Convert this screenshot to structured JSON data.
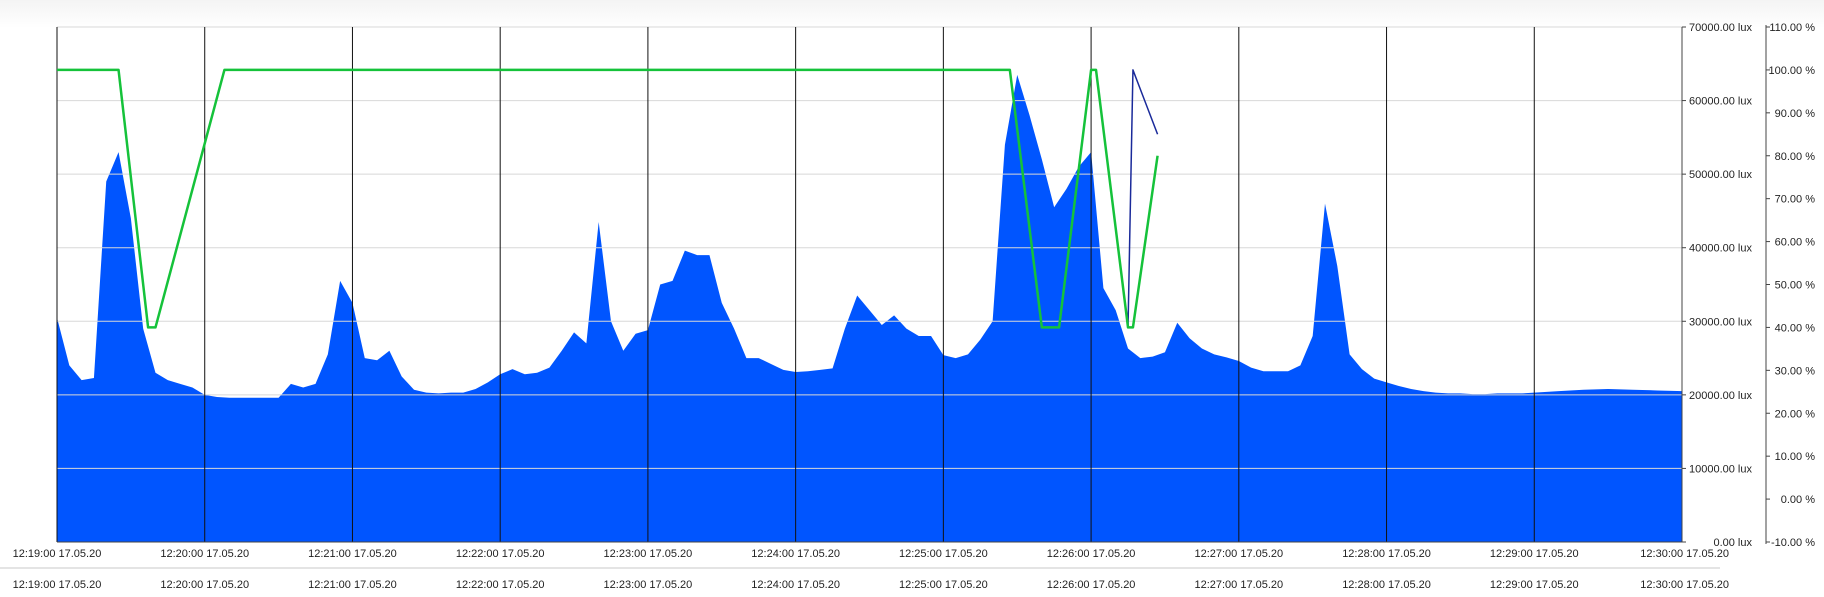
{
  "chart_data": {
    "type": "area",
    "x_ticks": [
      "12:19:00 17.05.20",
      "12:20:00 17.05.20",
      "12:21:00 17.05.20",
      "12:22:00 17.05.20",
      "12:23:00 17.05.20",
      "12:24:00 17.05.20",
      "12:25:00 17.05.20",
      "12:26:00 17.05.20",
      "12:27:00 17.05.20",
      "12:28:00 17.05.20",
      "12:29:00 17.05.20",
      "12:30:00 17.05.20"
    ],
    "xlim": [
      "12:19:00",
      "12:30:00"
    ],
    "y_left": {
      "ticks": [
        "0.00 lux",
        "10000.00 lux",
        "20000.00 lux",
        "30000.00 lux",
        "40000.00 lux",
        "50000.00 lux",
        "60000.00 lux",
        "70000.00 lux"
      ],
      "range": [
        0,
        70000
      ]
    },
    "y_right": {
      "ticks": [
        "-10.00 %",
        "0.00 %",
        "10.00 %",
        "20.00 %",
        "30.00 %",
        "40.00 %",
        "50.00 %",
        "60.00 %",
        "70.00 %",
        "80.00 %",
        "90.00 %",
        "100.00 %",
        "110.00 %"
      ],
      "range": [
        -10,
        110
      ]
    },
    "grid": {
      "horizontal": true,
      "vertical": true
    },
    "series": [
      {
        "kind": "area",
        "axis": "left",
        "color": "#0055ff",
        "points": [
          [
            "12:19:00",
            30500
          ],
          [
            "12:19:05",
            24000
          ],
          [
            "12:19:10",
            22000
          ],
          [
            "12:19:15",
            22300
          ],
          [
            "12:19:20",
            49000
          ],
          [
            "12:19:25",
            53000
          ],
          [
            "12:19:30",
            44000
          ],
          [
            "12:19:35",
            29000
          ],
          [
            "12:19:40",
            23000
          ],
          [
            "12:19:45",
            22000
          ],
          [
            "12:19:50",
            21500
          ],
          [
            "12:19:55",
            21000
          ],
          [
            "12:20:00",
            20000
          ],
          [
            "12:20:05",
            19700
          ],
          [
            "12:20:10",
            19600
          ],
          [
            "12:20:15",
            19600
          ],
          [
            "12:20:20",
            19600
          ],
          [
            "12:20:25",
            19600
          ],
          [
            "12:20:30",
            19600
          ],
          [
            "12:20:35",
            21500
          ],
          [
            "12:20:40",
            21000
          ],
          [
            "12:20:45",
            21500
          ],
          [
            "12:20:50",
            25500
          ],
          [
            "12:20:55",
            35500
          ],
          [
            "12:21:00",
            32500
          ],
          [
            "12:21:05",
            25000
          ],
          [
            "12:21:10",
            24700
          ],
          [
            "12:21:15",
            26000
          ],
          [
            "12:21:20",
            22500
          ],
          [
            "12:21:25",
            20700
          ],
          [
            "12:21:30",
            20300
          ],
          [
            "12:21:35",
            20200
          ],
          [
            "12:21:40",
            20300
          ],
          [
            "12:21:45",
            20300
          ],
          [
            "12:21:50",
            20800
          ],
          [
            "12:21:55",
            21700
          ],
          [
            "12:22:00",
            22800
          ],
          [
            "12:22:05",
            23500
          ],
          [
            "12:22:10",
            22800
          ],
          [
            "12:22:15",
            23000
          ],
          [
            "12:22:20",
            23700
          ],
          [
            "12:22:25",
            26000
          ],
          [
            "12:22:30",
            28500
          ],
          [
            "12:22:35",
            27000
          ],
          [
            "12:22:40",
            43500
          ],
          [
            "12:22:45",
            30000
          ],
          [
            "12:22:50",
            26000
          ],
          [
            "12:22:55",
            28300
          ],
          [
            "12:23:00",
            28800
          ],
          [
            "12:23:05",
            35000
          ],
          [
            "12:23:10",
            35500
          ],
          [
            "12:23:15",
            39600
          ],
          [
            "12:23:20",
            39000
          ],
          [
            "12:23:25",
            39000
          ],
          [
            "12:23:30",
            32500
          ],
          [
            "12:23:35",
            29000
          ],
          [
            "12:23:40",
            25000
          ],
          [
            "12:23:45",
            25000
          ],
          [
            "12:23:50",
            24200
          ],
          [
            "12:23:55",
            23400
          ],
          [
            "12:24:00",
            23100
          ],
          [
            "12:24:05",
            23200
          ],
          [
            "12:24:10",
            23400
          ],
          [
            "12:24:15",
            23600
          ],
          [
            "12:24:20",
            29000
          ],
          [
            "12:24:25",
            33500
          ],
          [
            "12:24:30",
            31500
          ],
          [
            "12:24:35",
            29500
          ],
          [
            "12:24:40",
            30800
          ],
          [
            "12:24:45",
            29000
          ],
          [
            "12:24:50",
            28000
          ],
          [
            "12:24:55",
            28000
          ],
          [
            "12:25:00",
            25400
          ],
          [
            "12:25:05",
            25000
          ],
          [
            "12:25:10",
            25500
          ],
          [
            "12:25:15",
            27500
          ],
          [
            "12:25:20",
            30000
          ],
          [
            "12:25:25",
            54000
          ],
          [
            "12:25:30",
            63500
          ],
          [
            "12:25:35",
            58000
          ],
          [
            "12:25:40",
            52000
          ],
          [
            "12:25:45",
            45500
          ],
          [
            "12:25:50",
            48000
          ],
          [
            "12:25:55",
            51000
          ],
          [
            "12:26:00",
            53000
          ],
          [
            "12:26:05",
            34500
          ],
          [
            "12:26:10",
            31500
          ],
          [
            "12:26:15",
            26300
          ],
          [
            "12:26:20",
            25000
          ],
          [
            "12:26:25",
            25200
          ],
          [
            "12:26:30",
            25800
          ],
          [
            "12:26:35",
            29800
          ],
          [
            "12:26:40",
            27700
          ],
          [
            "12:26:45",
            26300
          ],
          [
            "12:26:50",
            25500
          ],
          [
            "12:26:55",
            25100
          ],
          [
            "12:27:00",
            24600
          ],
          [
            "12:27:05",
            23700
          ],
          [
            "12:27:10",
            23200
          ],
          [
            "12:27:15",
            23200
          ],
          [
            "12:27:20",
            23200
          ],
          [
            "12:27:25",
            24000
          ],
          [
            "12:27:30",
            28000
          ],
          [
            "12:27:35",
            46000
          ],
          [
            "12:27:40",
            37500
          ],
          [
            "12:27:45",
            25500
          ],
          [
            "12:27:50",
            23500
          ],
          [
            "12:27:55",
            22200
          ],
          [
            "12:28:00",
            21700
          ],
          [
            "12:28:05",
            21200
          ],
          [
            "12:28:10",
            20800
          ],
          [
            "12:28:15",
            20500
          ],
          [
            "12:28:20",
            20300
          ],
          [
            "12:28:25",
            20200
          ],
          [
            "12:28:30",
            20200
          ],
          [
            "12:28:35",
            20100
          ],
          [
            "12:28:40",
            20100
          ],
          [
            "12:28:45",
            20200
          ],
          [
            "12:28:50",
            20200
          ],
          [
            "12:28:55",
            20200
          ],
          [
            "12:29:00",
            20300
          ],
          [
            "12:29:10",
            20500
          ],
          [
            "12:29:20",
            20700
          ],
          [
            "12:29:30",
            20800
          ],
          [
            "12:29:40",
            20700
          ],
          [
            "12:29:50",
            20600
          ],
          [
            "12:30:00",
            20500
          ]
        ]
      },
      {
        "kind": "line",
        "axis": "right",
        "color": "#1a2a9a",
        "points": [
          [
            "12:19:00",
            100
          ],
          [
            "12:19:25",
            100
          ],
          [
            "12:19:37",
            40
          ],
          [
            "12:19:40",
            40
          ],
          [
            "12:20:08",
            100
          ],
          [
            "12:25:27",
            100
          ],
          [
            "12:25:40",
            40
          ],
          [
            "12:25:47",
            40
          ],
          [
            "12:26:00",
            100
          ],
          [
            "12:26:02",
            100
          ],
          [
            "12:26:15",
            40
          ],
          [
            "12:26:17",
            100
          ],
          [
            "12:26:27",
            85
          ]
        ]
      },
      {
        "kind": "line",
        "axis": "right",
        "color": "#15c23a",
        "points": [
          [
            "12:19:00",
            100
          ],
          [
            "12:19:25",
            100
          ],
          [
            "12:19:37",
            40
          ],
          [
            "12:19:40",
            40
          ],
          [
            "12:20:08",
            100
          ],
          [
            "12:25:27",
            100
          ],
          [
            "12:25:40",
            40
          ],
          [
            "12:25:47",
            40
          ],
          [
            "12:26:00",
            100
          ],
          [
            "12:26:02",
            100
          ],
          [
            "12:26:15",
            40
          ],
          [
            "12:26:17",
            40
          ],
          [
            "12:26:27",
            80
          ]
        ]
      }
    ]
  }
}
